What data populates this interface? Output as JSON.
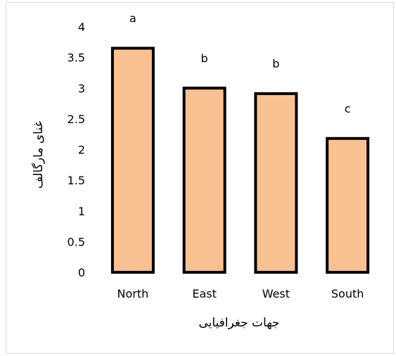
{
  "chart_data": {
    "type": "bar",
    "categories": [
      "North",
      "East",
      "West",
      "South"
    ],
    "values": [
      3.65,
      3.0,
      2.91,
      2.18
    ],
    "significance_letters": [
      "a",
      "b",
      "b",
      "c"
    ],
    "title": "",
    "xlabel": "جهات جغرافیایی",
    "ylabel": "غنای مارگالف",
    "ylim": [
      0,
      4
    ],
    "yticks": [
      "0",
      "0.5",
      "1",
      "1.5",
      "2",
      "2.5",
      "3",
      "3.5",
      "4"
    ],
    "grid": false,
    "legend": "none",
    "colors": {
      "bar_fill": "#F9C191",
      "bar_stroke": "#000000"
    }
  }
}
